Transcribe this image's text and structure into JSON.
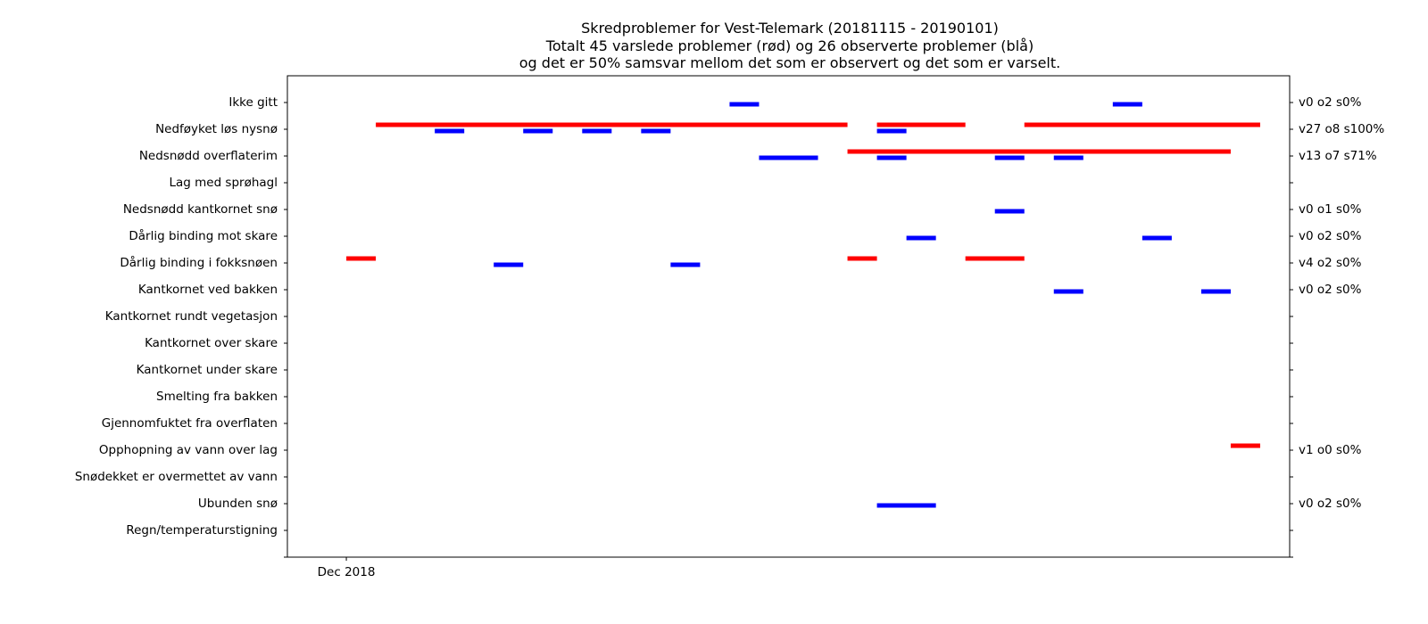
{
  "chart_data": {
    "type": "gantt",
    "title": [
      "Skredproblemer for Vest-Telemark (20181115 - 20190101)",
      "Totalt 45 varslede problemer (rød) og 26 observerte problemer (blå)",
      "og det er 50% samsvar mellom det som er observert og det som er varselt."
    ],
    "x_ticks": [
      {
        "date": "2018-12-01",
        "label": "Dec 2018"
      }
    ],
    "xlim": [
      "2018-11-29",
      "2019-01-02"
    ],
    "colors": {
      "forecast": "#ff0000",
      "observed": "#0000ff"
    },
    "categories": [
      "Ikke gitt",
      "Nedføyket løs nysnø",
      "Nedsnødd overflaterim",
      "Lag med sprøhagl",
      "Nedsnødd kantkornet snø",
      "Dårlig binding mot skare",
      "Dårlig binding i fokksnøen",
      "Kantkornet ved bakken",
      "Kantkornet rundt vegetasjon",
      "Kantkornet over skare",
      "Kantkornet under skare",
      "Smelting fra bakken",
      "Gjennomfuktet fra overflaten",
      "Opphopning av vann over lag",
      "Snødekket er overmettet av vann",
      "Ubunden snø",
      "Regn/temperaturstigning"
    ],
    "right_labels": [
      "v0 o2 s0%",
      "v27 o8 s100%",
      "v13 o7 s71%",
      "",
      "v0 o1 s0%",
      "v0 o2 s0%",
      "v4 o2 s0%",
      "v0 o2 s0%",
      "",
      "",
      "",
      "",
      "",
      "v1 o0 s0%",
      "",
      "v0 o2 s0%",
      ""
    ],
    "series": [
      {
        "kind": "forecast",
        "segments": [
          {
            "row": 1,
            "start": "2018-12-02",
            "end": "2018-12-18"
          },
          {
            "row": 1,
            "start": "2018-12-19",
            "end": "2018-12-22"
          },
          {
            "row": 1,
            "start": "2018-12-24",
            "end": "2019-01-01"
          },
          {
            "row": 2,
            "start": "2018-12-18",
            "end": "2018-12-31"
          },
          {
            "row": 6,
            "start": "2018-12-01",
            "end": "2018-12-02"
          },
          {
            "row": 6,
            "start": "2018-12-18",
            "end": "2018-12-19"
          },
          {
            "row": 6,
            "start": "2018-12-22",
            "end": "2018-12-24"
          },
          {
            "row": 13,
            "start": "2018-12-31",
            "end": "2019-01-01"
          }
        ]
      },
      {
        "kind": "observed",
        "segments": [
          {
            "row": 0,
            "start": "2018-12-14",
            "end": "2018-12-15"
          },
          {
            "row": 0,
            "start": "2018-12-27",
            "end": "2018-12-28"
          },
          {
            "row": 1,
            "start": "2018-12-04",
            "end": "2018-12-05"
          },
          {
            "row": 1,
            "start": "2018-12-07",
            "end": "2018-12-08"
          },
          {
            "row": 1,
            "start": "2018-12-09",
            "end": "2018-12-10"
          },
          {
            "row": 1,
            "start": "2018-12-11",
            "end": "2018-12-12"
          },
          {
            "row": 1,
            "start": "2018-12-19",
            "end": "2018-12-20"
          },
          {
            "row": 2,
            "start": "2018-12-15",
            "end": "2018-12-17"
          },
          {
            "row": 2,
            "start": "2018-12-19",
            "end": "2018-12-20"
          },
          {
            "row": 2,
            "start": "2018-12-23",
            "end": "2018-12-24"
          },
          {
            "row": 2,
            "start": "2018-12-25",
            "end": "2018-12-26"
          },
          {
            "row": 4,
            "start": "2018-12-23",
            "end": "2018-12-24"
          },
          {
            "row": 5,
            "start": "2018-12-20",
            "end": "2018-12-21"
          },
          {
            "row": 5,
            "start": "2018-12-28",
            "end": "2018-12-29"
          },
          {
            "row": 6,
            "start": "2018-12-06",
            "end": "2018-12-07"
          },
          {
            "row": 6,
            "start": "2018-12-12",
            "end": "2018-12-13"
          },
          {
            "row": 7,
            "start": "2018-12-25",
            "end": "2018-12-26"
          },
          {
            "row": 7,
            "start": "2018-12-30",
            "end": "2018-12-31"
          },
          {
            "row": 15,
            "start": "2018-12-19",
            "end": "2018-12-21"
          }
        ]
      }
    ]
  }
}
